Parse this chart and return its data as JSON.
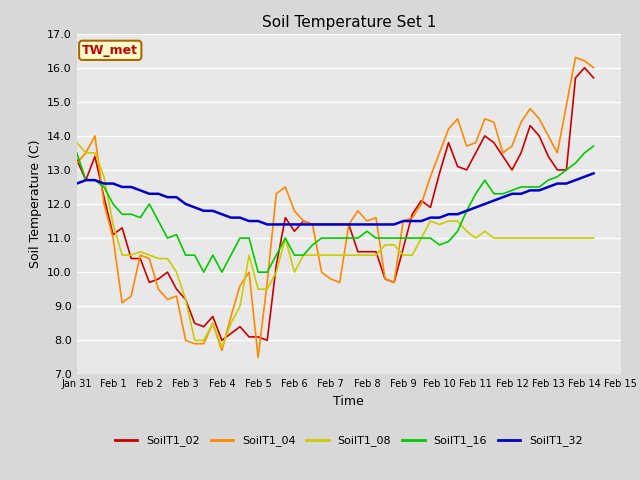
{
  "title": "Soil Temperature Set 1",
  "xlabel": "Time",
  "ylabel": "Soil Temperature (C)",
  "ylim": [
    7.0,
    17.0
  ],
  "yticks": [
    7.0,
    8.0,
    9.0,
    10.0,
    11.0,
    12.0,
    13.0,
    14.0,
    15.0,
    16.0,
    17.0
  ],
  "fig_bg_color": "#d8d8d8",
  "plot_bg_color": "#e8e8e8",
  "grid_color": "#ffffff",
  "annotation_text": "TW_met",
  "annotation_bg": "#ffffcc",
  "annotation_border": "#aa6600",
  "annotation_text_color": "#cc0000",
  "series": {
    "SoilT1_02": {
      "color": "#cc0000",
      "linewidth": 1.2,
      "x": [
        0,
        0.25,
        0.5,
        0.75,
        1.0,
        1.25,
        1.5,
        1.75,
        2.0,
        2.25,
        2.5,
        2.75,
        3.0,
        3.25,
        3.5,
        3.75,
        4.0,
        4.25,
        4.5,
        4.75,
        5.0,
        5.25,
        5.5,
        5.75,
        6.0,
        6.25,
        6.5,
        6.75,
        7.0,
        7.25,
        7.5,
        7.75,
        8.0,
        8.25,
        8.5,
        8.75,
        9.0,
        9.25,
        9.5,
        9.75,
        10.0,
        10.25,
        10.5,
        10.75,
        11.0,
        11.25,
        11.5,
        11.75,
        12.0,
        12.25,
        12.5,
        12.75,
        13.0,
        13.25,
        13.5,
        13.75,
        14.0,
        14.25
      ],
      "y": [
        13.3,
        12.7,
        13.4,
        12.2,
        11.1,
        11.3,
        10.4,
        10.4,
        9.7,
        9.8,
        10.0,
        9.5,
        9.2,
        8.5,
        8.4,
        8.7,
        8.0,
        8.2,
        8.4,
        8.1,
        8.1,
        8.0,
        10.2,
        11.6,
        11.2,
        11.5,
        11.4,
        11.4,
        11.4,
        11.4,
        11.4,
        10.6,
        10.6,
        10.6,
        9.8,
        9.7,
        10.7,
        11.7,
        12.1,
        11.9,
        12.9,
        13.8,
        13.1,
        13.0,
        13.5,
        14.0,
        13.8,
        13.4,
        13.0,
        13.5,
        14.3,
        14.0,
        13.4,
        13.0,
        13.0,
        15.7,
        16.0,
        15.7
      ]
    },
    "SoilT1_04": {
      "color": "#ff8800",
      "linewidth": 1.2,
      "x": [
        0,
        0.25,
        0.5,
        0.75,
        1.0,
        1.25,
        1.5,
        1.75,
        2.0,
        2.25,
        2.5,
        2.75,
        3.0,
        3.25,
        3.5,
        3.75,
        4.0,
        4.25,
        4.5,
        4.75,
        5.0,
        5.25,
        5.5,
        5.75,
        6.0,
        6.25,
        6.5,
        6.75,
        7.0,
        7.25,
        7.5,
        7.75,
        8.0,
        8.25,
        8.5,
        8.75,
        9.0,
        9.25,
        9.5,
        9.75,
        10.0,
        10.25,
        10.5,
        10.75,
        11.0,
        11.25,
        11.5,
        11.75,
        12.0,
        12.25,
        12.5,
        12.75,
        13.0,
        13.25,
        13.5,
        13.75,
        14.0,
        14.25
      ],
      "y": [
        13.2,
        13.5,
        14.0,
        12.0,
        11.0,
        9.1,
        9.3,
        10.5,
        10.4,
        9.5,
        9.2,
        9.3,
        8.0,
        7.9,
        7.9,
        8.5,
        7.7,
        8.7,
        9.6,
        10.0,
        7.5,
        9.7,
        12.3,
        12.5,
        11.8,
        11.5,
        11.4,
        10.0,
        9.8,
        9.7,
        11.4,
        11.8,
        11.5,
        11.6,
        9.8,
        9.7,
        11.5,
        11.6,
        12.0,
        12.8,
        13.5,
        14.2,
        14.5,
        13.7,
        13.8,
        14.5,
        14.4,
        13.5,
        13.7,
        14.4,
        14.8,
        14.5,
        14.0,
        13.5,
        14.9,
        16.3,
        16.2,
        16.0
      ]
    },
    "SoilT1_08": {
      "color": "#cccc00",
      "linewidth": 1.2,
      "x": [
        0,
        0.25,
        0.5,
        0.75,
        1.0,
        1.25,
        1.5,
        1.75,
        2.0,
        2.25,
        2.5,
        2.75,
        3.0,
        3.25,
        3.5,
        3.75,
        4.0,
        4.25,
        4.5,
        4.75,
        5.0,
        5.25,
        5.5,
        5.75,
        6.0,
        6.25,
        6.5,
        6.75,
        7.0,
        7.25,
        7.5,
        7.75,
        8.0,
        8.25,
        8.5,
        8.75,
        9.0,
        9.25,
        9.5,
        9.75,
        10.0,
        10.25,
        10.5,
        10.75,
        11.0,
        11.25,
        11.5,
        11.75,
        12.0,
        12.25,
        12.5,
        12.75,
        13.0,
        13.25,
        13.5,
        13.75,
        14.0,
        14.25
      ],
      "y": [
        13.8,
        13.5,
        13.5,
        12.8,
        11.4,
        10.5,
        10.5,
        10.6,
        10.5,
        10.4,
        10.4,
        10.0,
        9.2,
        8.0,
        8.0,
        8.5,
        7.8,
        8.5,
        9.0,
        10.5,
        9.5,
        9.5,
        10.0,
        11.0,
        10.0,
        10.5,
        10.5,
        10.5,
        10.5,
        10.5,
        10.5,
        10.5,
        10.5,
        10.5,
        10.8,
        10.8,
        10.5,
        10.5,
        11.0,
        11.5,
        11.4,
        11.5,
        11.5,
        11.2,
        11.0,
        11.2,
        11.0,
        11.0,
        11.0,
        11.0,
        11.0,
        11.0,
        11.0,
        11.0,
        11.0,
        11.0,
        11.0,
        11.0
      ]
    },
    "SoilT1_16": {
      "color": "#00cc00",
      "linewidth": 1.2,
      "x": [
        0,
        0.25,
        0.5,
        0.75,
        1.0,
        1.25,
        1.5,
        1.75,
        2.0,
        2.25,
        2.5,
        2.75,
        3.0,
        3.25,
        3.5,
        3.75,
        4.0,
        4.25,
        4.5,
        4.75,
        5.0,
        5.25,
        5.5,
        5.75,
        6.0,
        6.25,
        6.5,
        6.75,
        7.0,
        7.25,
        7.5,
        7.75,
        8.0,
        8.25,
        8.5,
        8.75,
        9.0,
        9.25,
        9.5,
        9.75,
        10.0,
        10.25,
        10.5,
        10.75,
        11.0,
        11.25,
        11.5,
        11.75,
        12.0,
        12.25,
        12.5,
        12.75,
        13.0,
        13.25,
        13.5,
        13.75,
        14.0,
        14.25
      ],
      "y": [
        13.5,
        12.7,
        12.7,
        12.5,
        12.0,
        11.7,
        11.7,
        11.6,
        12.0,
        11.5,
        11.0,
        11.1,
        10.5,
        10.5,
        10.0,
        10.5,
        10.0,
        10.5,
        11.0,
        11.0,
        10.0,
        10.0,
        10.5,
        11.0,
        10.5,
        10.5,
        10.8,
        11.0,
        11.0,
        11.0,
        11.0,
        11.0,
        11.2,
        11.0,
        11.0,
        11.0,
        11.0,
        11.0,
        11.0,
        11.0,
        10.8,
        10.9,
        11.2,
        11.8,
        12.3,
        12.7,
        12.3,
        12.3,
        12.4,
        12.5,
        12.5,
        12.5,
        12.7,
        12.8,
        13.0,
        13.2,
        13.5,
        13.7
      ]
    },
    "SoilT1_32": {
      "color": "#0000cc",
      "linewidth": 1.8,
      "x": [
        0,
        0.25,
        0.5,
        0.75,
        1.0,
        1.25,
        1.5,
        1.75,
        2.0,
        2.25,
        2.5,
        2.75,
        3.0,
        3.25,
        3.5,
        3.75,
        4.0,
        4.25,
        4.5,
        4.75,
        5.0,
        5.25,
        5.5,
        5.75,
        6.0,
        6.25,
        6.5,
        6.75,
        7.0,
        7.25,
        7.5,
        7.75,
        8.0,
        8.25,
        8.5,
        8.75,
        9.0,
        9.25,
        9.5,
        9.75,
        10.0,
        10.25,
        10.5,
        10.75,
        11.0,
        11.25,
        11.5,
        11.75,
        12.0,
        12.25,
        12.5,
        12.75,
        13.0,
        13.25,
        13.5,
        13.75,
        14.0,
        14.25
      ],
      "y": [
        12.6,
        12.7,
        12.7,
        12.6,
        12.6,
        12.5,
        12.5,
        12.4,
        12.3,
        12.3,
        12.2,
        12.2,
        12.0,
        11.9,
        11.8,
        11.8,
        11.7,
        11.6,
        11.6,
        11.5,
        11.5,
        11.4,
        11.4,
        11.4,
        11.4,
        11.4,
        11.4,
        11.4,
        11.4,
        11.4,
        11.4,
        11.4,
        11.4,
        11.4,
        11.4,
        11.4,
        11.5,
        11.5,
        11.5,
        11.6,
        11.6,
        11.7,
        11.7,
        11.8,
        11.9,
        12.0,
        12.1,
        12.2,
        12.3,
        12.3,
        12.4,
        12.4,
        12.5,
        12.6,
        12.6,
        12.7,
        12.8,
        12.9
      ]
    }
  },
  "xtick_labels": [
    "Jan 31",
    "Feb 1",
    "Feb 2",
    "Feb 3",
    "Feb 4",
    "Feb 5",
    "Feb 6",
    "Feb 7",
    "Feb 8",
    "Feb 9",
    "Feb 10",
    "Feb 11",
    "Feb 12",
    "Feb 13",
    "Feb 14",
    "Feb 15"
  ],
  "xtick_positions": [
    0,
    1,
    2,
    3,
    4,
    5,
    6,
    7,
    8,
    9,
    10,
    11,
    12,
    13,
    14,
    15
  ],
  "xlim": [
    0,
    14.25
  ]
}
